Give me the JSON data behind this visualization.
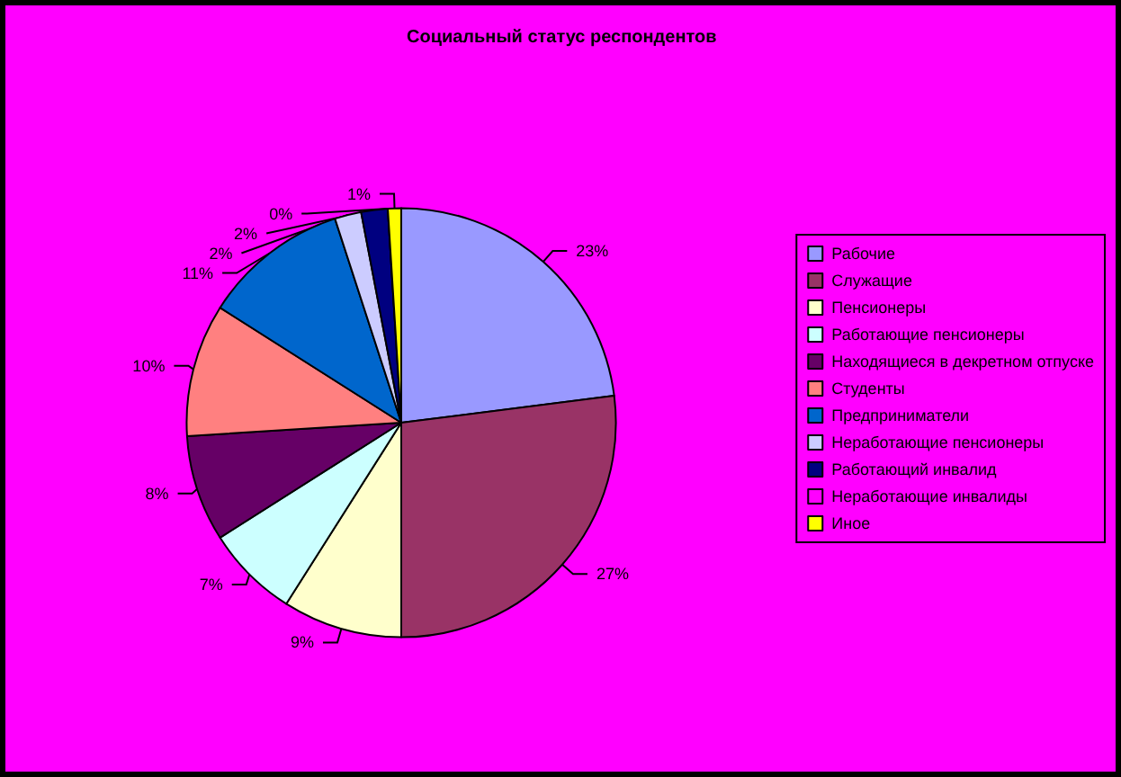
{
  "chart_data": {
    "type": "pie",
    "title": "Социальный статус респондентов",
    "categories": [
      "Рабочие",
      "Служащие",
      "Пенсионеры",
      "Работающие пенсионеры",
      "Находящиеся в декретном отпуске",
      "Студенты",
      "Предприниматели",
      "Неработающие пенсионеры",
      "Работающий инвалид",
      "Неработающие инвалиды",
      "Иное"
    ],
    "values": [
      23,
      27,
      9,
      7,
      8,
      10,
      11,
      2,
      2,
      0,
      1
    ],
    "colors": [
      "#9999ff",
      "#993366",
      "#ffffcc",
      "#ccffff",
      "#660066",
      "#ff8080",
      "#0066cc",
      "#ccccff",
      "#000080",
      "#ff00ff",
      "#ffff00"
    ],
    "value_labels": [
      "23%",
      "27%",
      "9%",
      "7%",
      "8%",
      "10%",
      "11%",
      "2%",
      "2%",
      "0%",
      "1%"
    ],
    "legend": "right"
  }
}
